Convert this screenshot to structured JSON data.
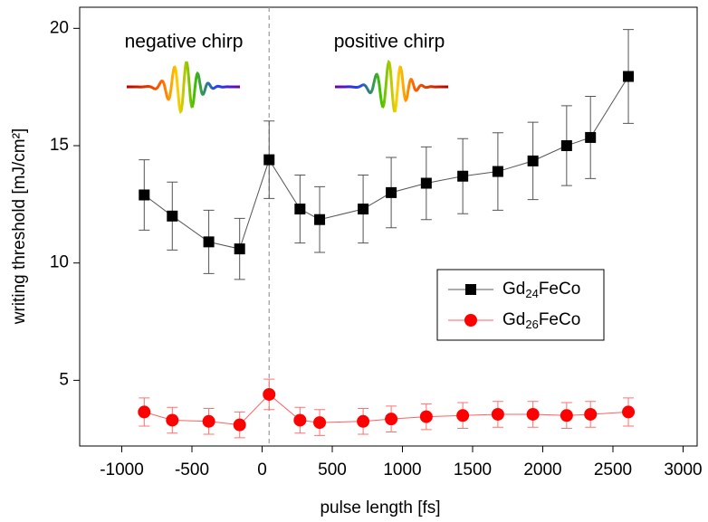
{
  "chart_data": {
    "type": "line",
    "xlabel": "pulse length [fs]",
    "ylabel": "writing threshold [mJ/cm²]",
    "annotations": [
      "negative chirp",
      "positive chirp"
    ],
    "reference_line_x": 50,
    "x": [
      -840,
      -640,
      -380,
      -160,
      50,
      270,
      410,
      720,
      920,
      1170,
      1430,
      1680,
      1930,
      2170,
      2340,
      2610
    ],
    "series": [
      {
        "name": "Gd24FeCo",
        "color": "#000000",
        "marker": "square",
        "values": [
          12.9,
          12.0,
          10.9,
          10.6,
          14.4,
          12.3,
          11.85,
          12.3,
          13.0,
          13.4,
          13.7,
          13.9,
          14.35,
          15.0,
          15.35,
          17.95
        ],
        "errors": [
          1.5,
          1.45,
          1.35,
          1.3,
          1.65,
          1.45,
          1.4,
          1.45,
          1.5,
          1.55,
          1.6,
          1.65,
          1.65,
          1.7,
          1.75,
          2.0
        ]
      },
      {
        "name": "Gd26FeCo",
        "color": "#ff0000",
        "marker": "circle",
        "values": [
          3.65,
          3.3,
          3.25,
          3.1,
          4.4,
          3.3,
          3.2,
          3.25,
          3.35,
          3.45,
          3.5,
          3.55,
          3.55,
          3.5,
          3.55,
          3.65
        ],
        "errors": [
          0.6,
          0.55,
          0.55,
          0.55,
          0.65,
          0.55,
          0.55,
          0.55,
          0.55,
          0.55,
          0.55,
          0.55,
          0.55,
          0.55,
          0.55,
          0.6
        ]
      }
    ],
    "xlim": [
      -1300,
      3100
    ],
    "ylim": [
      2.2,
      20.9
    ],
    "xticks": [
      -1000,
      -500,
      0,
      500,
      1000,
      1500,
      2000,
      2500,
      3000
    ],
    "yticks": [
      5,
      10,
      15,
      20
    ],
    "legend": "right"
  }
}
